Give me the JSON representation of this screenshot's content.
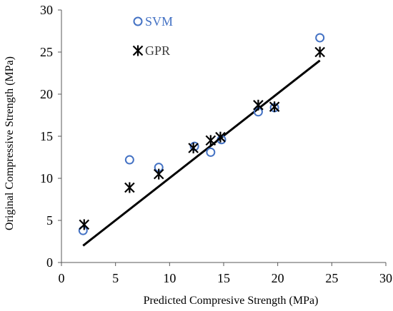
{
  "chart_data": {
    "type": "scatter",
    "xlabel": "Predicted Compresive Strength (MPa)",
    "ylabel": "Original Compressive Strength (MPa)",
    "xlim": [
      0,
      30
    ],
    "ylim": [
      0,
      30
    ],
    "x_ticks": [
      0,
      5,
      10,
      15,
      20,
      25,
      30
    ],
    "y_ticks": [
      0,
      5,
      10,
      15,
      20,
      25,
      30
    ],
    "grid": false,
    "legend_position": "top-left",
    "series": [
      {
        "name": "SVM",
        "marker": "open-circle",
        "color": "#4472C4",
        "points": [
          [
            2.0,
            3.8
          ],
          [
            6.3,
            12.2
          ],
          [
            9.0,
            11.3
          ],
          [
            12.3,
            13.8
          ],
          [
            13.8,
            13.1
          ],
          [
            14.8,
            14.6
          ],
          [
            18.2,
            17.9
          ],
          [
            19.7,
            18.4
          ],
          [
            23.9,
            26.7
          ]
        ]
      },
      {
        "name": "GPR",
        "marker": "star-cross",
        "color": "#000000",
        "points": [
          [
            2.1,
            4.5
          ],
          [
            6.3,
            8.9
          ],
          [
            9.0,
            10.5
          ],
          [
            12.2,
            13.6
          ],
          [
            13.8,
            14.5
          ],
          [
            14.7,
            14.9
          ],
          [
            18.2,
            18.7
          ],
          [
            19.7,
            18.5
          ],
          [
            23.9,
            25.0
          ]
        ]
      }
    ],
    "trendline": {
      "color": "#000000",
      "points": [
        [
          2.0,
          2.0
        ],
        [
          23.9,
          24.0
        ]
      ]
    }
  }
}
